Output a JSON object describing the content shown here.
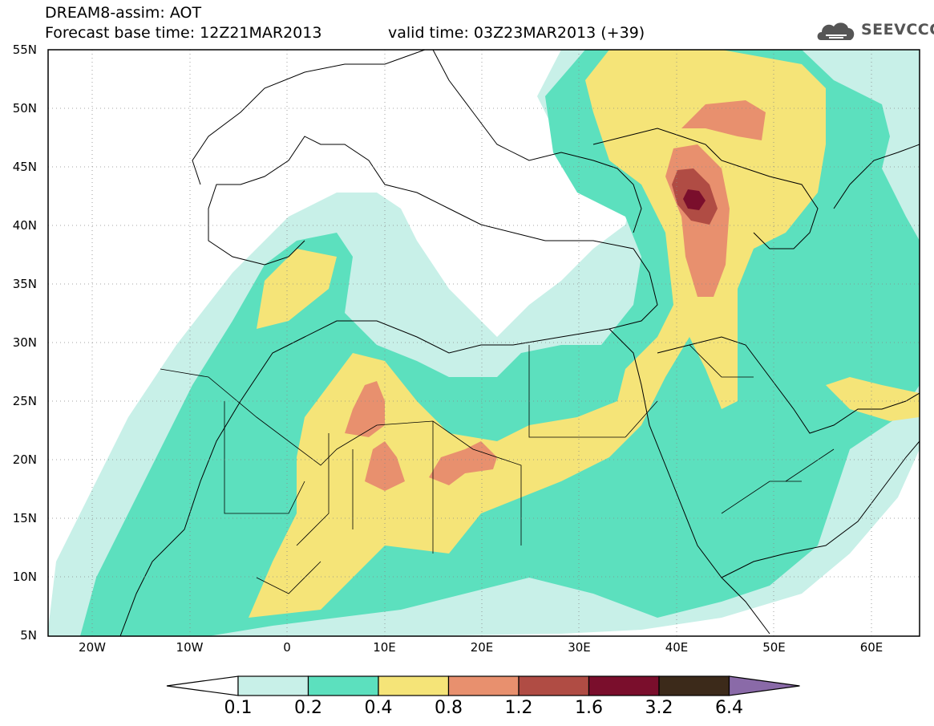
{
  "header": {
    "title": "DREAM8-assim: AOT",
    "base_time": "Forecast base time: 12Z21MAR2013",
    "valid_time": "valid time: 03Z23MAR2013 (+39)",
    "logo_text": "SEEVCCC"
  },
  "axes": {
    "lat_labels": [
      "55N",
      "50N",
      "45N",
      "40N",
      "35N",
      "30N",
      "25N",
      "20N",
      "15N",
      "10N",
      "5N"
    ],
    "lon_labels": [
      "20W",
      "10W",
      "0",
      "10E",
      "20E",
      "30E",
      "40E",
      "50E",
      "60E"
    ]
  },
  "colorbar": {
    "labels": [
      "0.1",
      "0.2",
      "0.4",
      "0.8",
      "1.2",
      "1.6",
      "3.2",
      "6.4"
    ],
    "colors": [
      "#ffffff",
      "#c8f0e8",
      "#5ce0be",
      "#f5e478",
      "#e8906e",
      "#b04c44",
      "#7a0e2c",
      "#3c2a1a",
      "#8a6aa8"
    ]
  },
  "colors": {
    "level1": "#c8f0e8",
    "level2": "#5ce0be",
    "level3": "#f5e478",
    "level4": "#e8906e",
    "level5": "#b04c44",
    "level6": "#7a0e2c"
  }
}
